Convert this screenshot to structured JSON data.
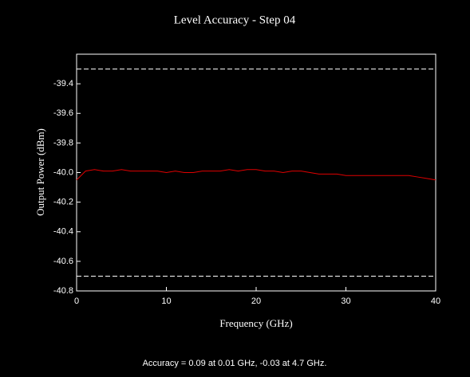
{
  "chart_data": {
    "type": "line",
    "title": "Level Accuracy - Step 04",
    "x_label": "Frequency (GHz)",
    "y_label": "Output Power (dBm)",
    "note": "Accuracy = 0.09 at 0.01 GHz, -0.03 at 4.7 GHz.",
    "x": [
      0,
      1,
      2,
      3,
      4,
      5,
      6,
      7,
      8,
      9,
      10,
      11,
      12,
      13,
      14,
      15,
      16,
      17,
      18,
      19,
      20,
      21,
      22,
      23,
      24,
      25,
      26,
      27,
      28,
      29,
      30,
      31,
      32,
      33,
      34,
      35,
      36,
      37,
      38,
      39,
      40
    ],
    "series": [
      {
        "color": "#e00000",
        "values": [
          -40.05,
          -39.99,
          -39.98,
          -39.99,
          -39.99,
          -39.98,
          -39.99,
          -39.99,
          -39.99,
          -39.99,
          -40.0,
          -39.99,
          -40.0,
          -40.0,
          -39.99,
          -39.99,
          -39.99,
          -39.98,
          -39.99,
          -39.98,
          -39.98,
          -39.99,
          -39.99,
          -40.0,
          -39.99,
          -39.99,
          -40.0,
          -40.01,
          -40.01,
          -40.01,
          -40.02,
          -40.02,
          -40.02,
          -40.02,
          -40.02,
          -40.02,
          -40.02,
          -40.02,
          -40.03,
          -40.04,
          -40.05
        ]
      }
    ],
    "limit_lines": [
      -39.3,
      -40.7
    ],
    "xlim": [
      0,
      40
    ],
    "xticks": [
      0,
      10,
      20,
      30,
      40
    ],
    "ylim": [
      -40.8,
      -39.2
    ],
    "yticks": [
      -40.8,
      -40.6,
      -40.4,
      -40.2,
      {
        "value": -40,
        "label": "-40.0"
      },
      -39.8,
      -39.6,
      -39.4
    ]
  }
}
